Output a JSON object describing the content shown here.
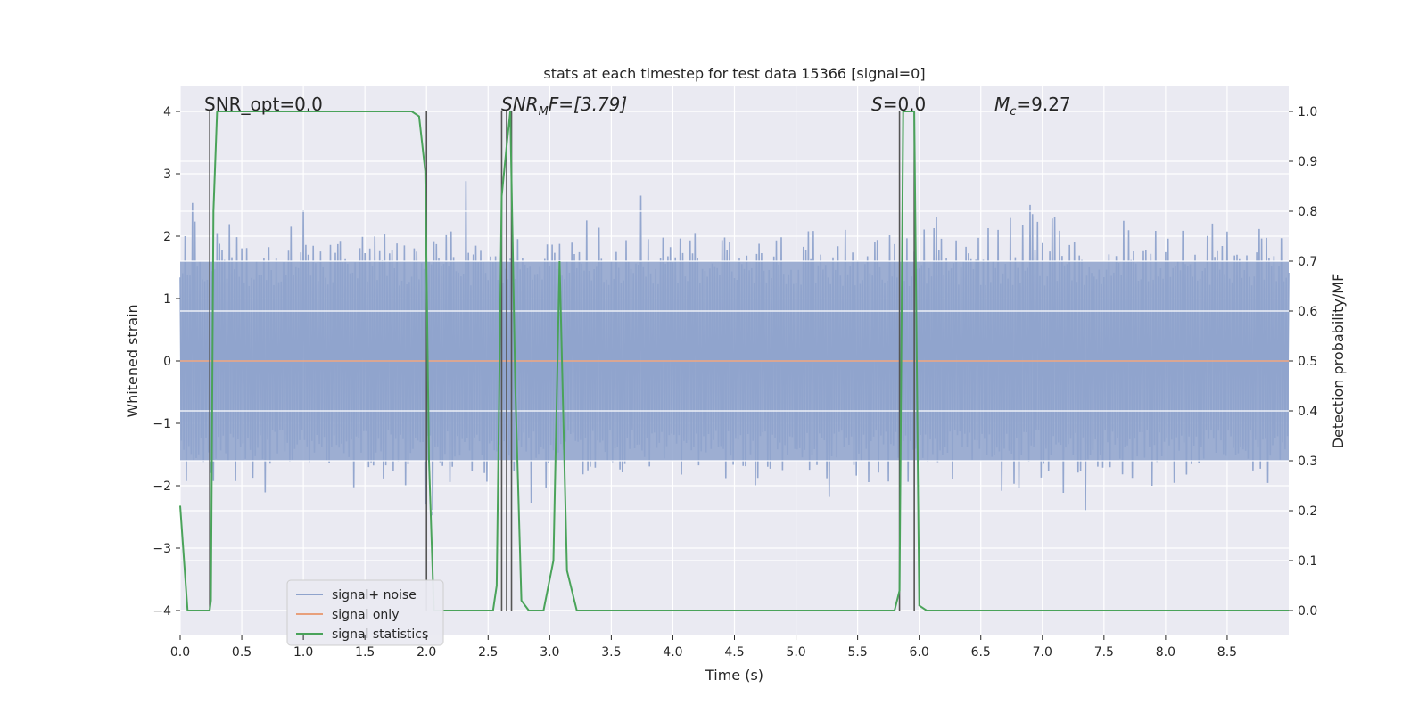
{
  "chart_data": {
    "type": "line",
    "title": "stats at each timestep for test data 15366 [signal=0]",
    "xlabel": "Time (s)",
    "ylabel": "Whitened strain",
    "ylabel_right": "Detection probability/MF",
    "xlim": [
      0.0,
      9.0
    ],
    "ylim": [
      -4.4,
      4.4
    ],
    "ylim_right": [
      -0.05,
      1.05
    ],
    "xticks": [
      "0.0",
      "0.5",
      "1.0",
      "1.5",
      "2.0",
      "2.5",
      "3.0",
      "3.5",
      "4.0",
      "4.5",
      "5.0",
      "5.5",
      "6.0",
      "6.5",
      "7.0",
      "7.5",
      "8.0",
      "8.5"
    ],
    "xtick_values": [
      0.0,
      0.5,
      1.0,
      1.5,
      2.0,
      2.5,
      3.0,
      3.5,
      4.0,
      4.5,
      5.0,
      5.5,
      6.0,
      6.5,
      7.0,
      7.5,
      8.0,
      8.5
    ],
    "yticks_left": [
      "−4",
      "−3",
      "−2",
      "−1",
      "0",
      "1",
      "2",
      "3",
      "4"
    ],
    "ytick_values_left": [
      -4,
      -3,
      -2,
      -1,
      0,
      1,
      2,
      3,
      4
    ],
    "yticks_right": [
      "0.0",
      "0.1",
      "0.2",
      "0.3",
      "0.4",
      "0.5",
      "0.6",
      "0.7",
      "0.8",
      "0.9",
      "1.0"
    ],
    "ytick_values_right": [
      0.0,
      0.1,
      0.2,
      0.3,
      0.4,
      0.5,
      0.6,
      0.7,
      0.8,
      0.9,
      1.0
    ],
    "grid": true,
    "legend_position": "lower-left",
    "annotations": {
      "snr_opt": "SNR_opt=0.0",
      "snr_mf_main": "SNR",
      "snr_mf_sub": "M",
      "snr_mf_rest": "F=[3.79]",
      "s_italic": "S",
      "s_rest": "=0.0",
      "mc_italic": "M",
      "mc_sub": "c",
      "mc_rest": "=9.27"
    },
    "series": [
      {
        "name": "signal+ noise",
        "color": "#8fa3cc",
        "axis": "left",
        "kind": "noise",
        "duration": 9.0,
        "sample_step": 0.01,
        "envelope_upper": 2.4,
        "envelope_lower": -2.0,
        "peak_max": 4.0,
        "peak_min": -4.0
      },
      {
        "name": "signal only",
        "color": "#e8a07c",
        "axis": "left",
        "x": [
          0.0,
          9.0
        ],
        "y": [
          0.0,
          0.0
        ]
      },
      {
        "name": "signal statistics",
        "color": "#4aa35a",
        "axis": "right",
        "x": [
          0.0,
          0.06,
          0.12,
          0.18,
          0.24,
          0.25,
          0.27,
          0.3,
          0.4,
          0.6,
          0.8,
          1.0,
          1.2,
          1.4,
          1.6,
          1.8,
          1.88,
          1.94,
          1.99,
          2.02,
          2.06,
          2.12,
          2.25,
          2.4,
          2.54,
          2.57,
          2.61,
          2.65,
          2.68,
          2.72,
          2.77,
          2.83,
          2.95,
          3.03,
          3.08,
          3.14,
          3.22,
          3.4,
          4.0,
          5.0,
          5.8,
          5.84,
          5.87,
          5.92,
          5.96,
          6.0,
          6.06,
          7.0,
          8.0,
          9.0
        ],
        "y": [
          0.21,
          0.0,
          0.0,
          0.0,
          0.0,
          0.02,
          0.8,
          1.0,
          1.0,
          1.0,
          1.0,
          1.0,
          1.0,
          1.0,
          1.0,
          1.0,
          1.0,
          0.99,
          0.88,
          0.3,
          0.0,
          0.0,
          0.0,
          0.0,
          0.0,
          0.05,
          0.83,
          0.93,
          1.0,
          0.45,
          0.02,
          0.0,
          0.0,
          0.1,
          0.7,
          0.08,
          0.0,
          0.0,
          0.0,
          0.0,
          0.0,
          0.04,
          1.0,
          1.0,
          1.0,
          0.01,
          0.0,
          0.0,
          0.0,
          0.0
        ]
      }
    ],
    "vertical_markers": [
      0.24,
      2.0,
      2.61,
      2.65,
      2.69,
      5.84,
      5.96
    ]
  }
}
